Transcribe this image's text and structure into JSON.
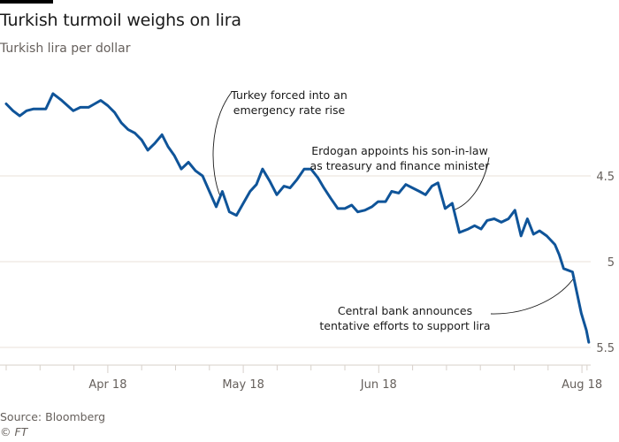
{
  "header": {
    "title": "Turkish turmoil weighs on lira",
    "subtitle": "Turkish lira per dollar"
  },
  "footer": {
    "source": "Source: Bloomberg",
    "copyright": "© FT"
  },
  "colors": {
    "line": "#0f5499",
    "grid": "#e9e1da",
    "axis": "#d7d0ca",
    "text_muted": "#66605c",
    "text": "#1a1a1a"
  },
  "chart_data": {
    "type": "line",
    "title": "Turkish turmoil weighs on lira",
    "subtitle": "Turkish lira per dollar",
    "xlabel": "",
    "ylabel": "Turkish lira per dollar",
    "y_inverted": true,
    "ylim": [
      3.9,
      5.55
    ],
    "yticks": [
      4.5,
      5,
      5.5
    ],
    "ytick_labels": [
      "4.5",
      "5",
      "5.5"
    ],
    "x_tick_labels": [
      "Apr 18",
      "May 18",
      "Jun 18",
      "Aug 18"
    ],
    "x_tick_label_positions_weeks": [
      3,
      7,
      11,
      17
    ],
    "x_minor_ticks_weeks": [
      0,
      1,
      2,
      3,
      4,
      5,
      6,
      7,
      8,
      9,
      10,
      11,
      12,
      13,
      14,
      15,
      16,
      17,
      17.15
    ],
    "x_range_weeks": [
      0,
      17.25
    ],
    "grid": true,
    "legend": "none",
    "series": [
      {
        "name": "Turkish lira per dollar",
        "x_weeks": [
          0,
          0.2,
          0.4,
          0.6,
          0.8,
          1.17,
          1.38,
          1.64,
          1.98,
          2.19,
          2.43,
          2.61,
          2.79,
          3.0,
          3.2,
          3.4,
          3.6,
          3.8,
          4.0,
          4.18,
          4.39,
          4.6,
          4.78,
          4.96,
          5.17,
          5.38,
          5.59,
          5.8,
          6.0,
          6.2,
          6.38,
          6.59,
          6.8,
          7.0,
          7.2,
          7.39,
          7.57,
          7.78,
          7.99,
          8.2,
          8.38,
          8.59,
          8.8,
          9.0,
          9.2,
          9.38,
          9.58,
          9.79,
          10.0,
          10.2,
          10.38,
          10.59,
          10.8,
          10.98,
          11.2,
          11.38,
          11.59,
          11.8,
          12.0,
          12.2,
          12.38,
          12.57,
          12.75,
          12.96,
          13.17,
          13.38,
          13.64,
          13.83,
          14.02,
          14.2,
          14.41,
          14.62,
          14.83,
          15.02,
          15.2,
          15.39,
          15.57,
          15.75,
          15.96,
          16.2,
          16.33,
          16.46,
          16.72,
          16.98,
          17.13,
          17.2
        ],
        "values": [
          4.08,
          4.12,
          4.15,
          4.12,
          4.11,
          4.11,
          4.02,
          4.06,
          4.12,
          4.1,
          4.1,
          4.08,
          4.06,
          4.09,
          4.13,
          4.19,
          4.23,
          4.25,
          4.29,
          4.35,
          4.31,
          4.26,
          4.33,
          4.38,
          4.46,
          4.42,
          4.47,
          4.5,
          4.59,
          4.68,
          4.59,
          4.71,
          4.73,
          4.66,
          4.59,
          4.55,
          4.46,
          4.53,
          4.61,
          4.56,
          4.57,
          4.52,
          4.46,
          4.46,
          4.51,
          4.57,
          4.63,
          4.69,
          4.69,
          4.67,
          4.71,
          4.7,
          4.68,
          4.65,
          4.65,
          4.59,
          4.6,
          4.55,
          4.57,
          4.59,
          4.61,
          4.56,
          4.54,
          4.69,
          4.66,
          4.83,
          4.81,
          4.79,
          4.81,
          4.76,
          4.75,
          4.77,
          4.75,
          4.7,
          4.85,
          4.75,
          4.84,
          4.82,
          4.85,
          4.9,
          4.96,
          5.04,
          5.06,
          5.3,
          5.4,
          5.47
        ]
      }
    ],
    "annotations": [
      {
        "text": [
          "Turkey forced into an",
          "emergency rate rise"
        ],
        "target_week": 6.4
      },
      {
        "text": [
          "Erdogan appoints his son-in-law",
          "as treasury and finance minister"
        ],
        "target_week": 13.38
      },
      {
        "text": [
          "Central bank announces",
          "tentative efforts to support lira"
        ],
        "target_week": 16.98
      }
    ]
  }
}
